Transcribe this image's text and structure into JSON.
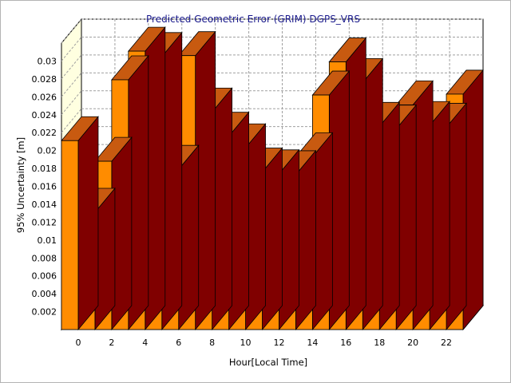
{
  "chart_data": {
    "type": "bar",
    "title": "Predicted Geometric Error (GRIM) DGPS_VRS",
    "xlabel": "Hour[Local Time]",
    "ylabel": "95% Uncertainty [m]",
    "x": [
      0,
      1,
      2,
      3,
      4,
      5,
      6,
      7,
      8,
      9,
      10,
      11,
      12,
      13,
      14,
      15,
      16,
      17,
      18,
      19,
      20,
      21,
      22,
      23
    ],
    "x_tick_labels": [
      "0",
      "2",
      "4",
      "6",
      "8",
      "10",
      "12",
      "14",
      "16",
      "18",
      "20",
      "22"
    ],
    "y_tick_labels": [
      "0.002",
      "0.004",
      "0.006",
      "0.008",
      "0.01",
      "0.012",
      "0.014",
      "0.016",
      "0.018",
      "0.02",
      "0.022",
      "0.024",
      "0.026",
      "0.028",
      "0.03"
    ],
    "values": [
      0.0211,
      0.0131,
      0.0188,
      0.0279,
      0.0311,
      0.0305,
      0.0179,
      0.0306,
      0.0243,
      0.0216,
      0.0203,
      0.0176,
      0.0174,
      0.0173,
      0.0193,
      0.0262,
      0.0299,
      0.0276,
      0.0227,
      0.0224,
      0.0251,
      0.0228,
      0.0226,
      0.0263
    ],
    "ylim": [
      0,
      0.032
    ],
    "grid": true,
    "colors": {
      "bar_front": "#ff8c00",
      "bar_top": "#c85a10",
      "bar_side": "#800000",
      "back_wall": "#ffffe0",
      "grid": "#a0a0a0"
    }
  }
}
